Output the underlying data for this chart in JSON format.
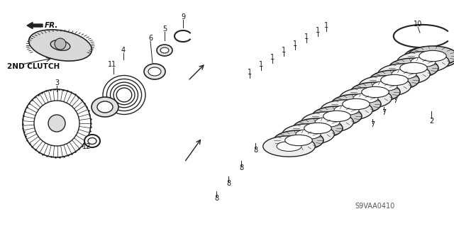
{
  "title": "",
  "background_color": "#ffffff",
  "part_label_2nd_clutch": "2ND CLUTCH",
  "fr_label": "FR.",
  "diagram_code": "S9VAA0410",
  "line_color": "#222222",
  "text_color": "#111111",
  "fig_width": 6.4,
  "fig_height": 3.19,
  "dpi": 100
}
